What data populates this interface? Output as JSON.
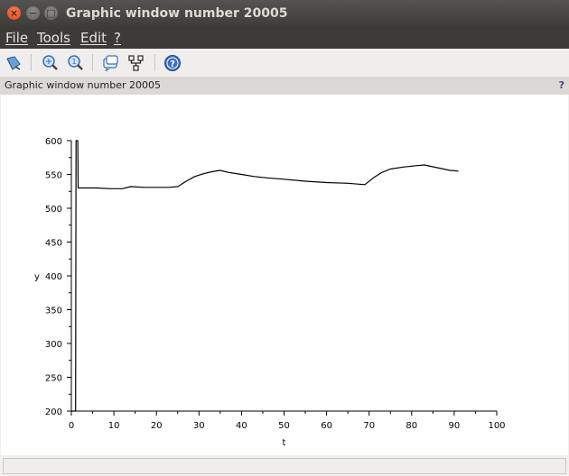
{
  "window": {
    "title": "Graphic window number 20005",
    "buttons": {
      "close": "×",
      "minimize": "−",
      "maximize": "□"
    }
  },
  "menubar": {
    "items": [
      {
        "label": "File"
      },
      {
        "label": "Tools"
      },
      {
        "label": "Edit"
      },
      {
        "label": "?"
      }
    ]
  },
  "toolbar": {
    "items": [
      {
        "icon": "rotate-icon"
      },
      {
        "icon": "zoom-in-icon"
      },
      {
        "icon": "zoom-reset-icon"
      },
      {
        "icon": "datatip-icon"
      },
      {
        "icon": "edit-axes-icon"
      },
      {
        "icon": "help-icon"
      }
    ]
  },
  "infobar": {
    "text": "Graphic window number 20005",
    "help": "?"
  },
  "status": {
    "text": ""
  },
  "chart_data": {
    "type": "line",
    "title": "",
    "xlabel": "t",
    "ylabel": "y",
    "xlim": [
      0,
      100
    ],
    "ylim": [
      200,
      600
    ],
    "xticks": [
      0,
      10,
      20,
      30,
      40,
      50,
      60,
      70,
      80,
      90,
      100
    ],
    "yticks": [
      200,
      250,
      300,
      350,
      400,
      450,
      500,
      550,
      600
    ],
    "grid": false,
    "legend": "none",
    "series": [
      {
        "color": "#000000",
        "x": [
          0,
          1,
          1.1,
          1.3,
          1.5,
          1.6,
          1.7,
          3,
          6,
          9,
          12,
          14,
          17,
          20,
          23,
          25,
          27,
          29,
          31,
          33,
          35,
          37,
          40,
          43,
          46,
          50,
          55,
          60,
          65,
          69,
          71,
          73,
          75,
          78,
          81,
          83,
          86,
          89,
          91
        ],
        "y": [
          200,
          200,
          600,
          600,
          600,
          530,
          530,
          530,
          530,
          529,
          529,
          532,
          531,
          531,
          531,
          532,
          540,
          547,
          551,
          554,
          556,
          553,
          550,
          547,
          545,
          543,
          540,
          538,
          537,
          535,
          545,
          553,
          558,
          561,
          563,
          564,
          560,
          556,
          555
        ]
      }
    ]
  }
}
